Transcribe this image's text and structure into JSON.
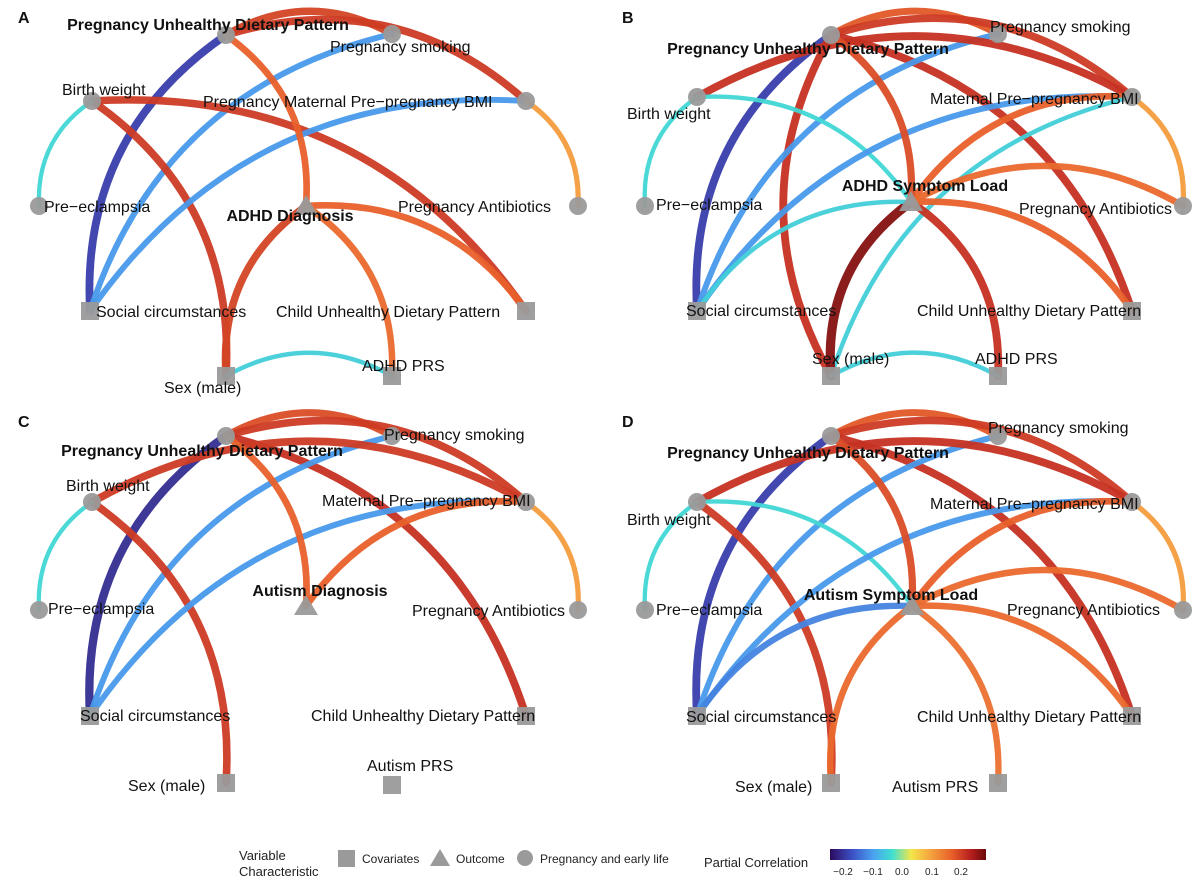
{
  "panels": [
    {
      "letter": "A",
      "labels": {
        "pudp": "Pregnancy Unhealthy Dietary Pattern",
        "smoking": "Pregnancy smoking",
        "birth": "Birth weight",
        "bmi": "Pregnancy Maternal Pre−pregnancy BMI",
        "outcome": "ADHD Diagnosis",
        "preeclampsia": "Pre−eclampsia",
        "antibiotics": "Pregnancy Antibiotics",
        "social": "Social circumstances",
        "cudp": "Child Unhealthy Dietary Pattern",
        "sex": "Sex (male)",
        "prs": "ADHD PRS"
      },
      "edges": [
        [
          "pudp",
          "smoking",
          0.2
        ],
        [
          "pudp",
          "bmi",
          0.21
        ],
        [
          "pudp",
          "social",
          -0.22
        ],
        [
          "smoking",
          "social",
          -0.13
        ],
        [
          "birth",
          "cudp",
          0.21
        ],
        [
          "birth",
          "sex",
          0.21
        ],
        [
          "bmi",
          "social",
          -0.13
        ],
        [
          "bmi",
          "antibiotics",
          0.1
        ],
        [
          "preeclampsia",
          "birth",
          -0.06
        ],
        [
          "outcome",
          "pudp",
          0.17
        ],
        [
          "outcome",
          "sex",
          0.2
        ],
        [
          "outcome",
          "cudp",
          0.17
        ],
        [
          "outcome",
          "prs",
          0.16
        ],
        [
          "sex",
          "prs",
          -0.07
        ]
      ]
    },
    {
      "letter": "B",
      "labels": {
        "pudp": "Pregnancy Unhealthy Dietary Pattern",
        "smoking": "Pregnancy smoking",
        "birth": "Birth weight",
        "bmi": "Maternal Pre−pregnancy BMI",
        "outcome": "ADHD Symptom Load",
        "preeclampsia": "Pre−eclampsia",
        "antibiotics": "Pregnancy Antibiotics",
        "social": "Social circumstances",
        "cudp": "Child Unhealthy Dietary Pattern",
        "sex": "Sex (male)",
        "prs": "ADHD PRS"
      },
      "edges": [
        [
          "pudp",
          "smoking",
          0.18
        ],
        [
          "pudp",
          "bmi",
          0.21
        ],
        [
          "pudp",
          "social",
          -0.22
        ],
        [
          "pudp",
          "cudp",
          0.22
        ],
        [
          "pudp",
          "sex",
          0.22
        ],
        [
          "smoking",
          "social",
          -0.13
        ],
        [
          "birth",
          "bmi",
          0.22
        ],
        [
          "birth",
          "outcome",
          -0.06
        ],
        [
          "bmi",
          "social",
          -0.13
        ],
        [
          "bmi",
          "antibiotics",
          0.1
        ],
        [
          "bmi",
          "outcome",
          0.17
        ],
        [
          "bmi",
          "sex",
          -0.07
        ],
        [
          "preeclampsia",
          "birth",
          -0.06
        ],
        [
          "outcome",
          "pudp",
          0.19
        ],
        [
          "outcome",
          "sex",
          0.28
        ],
        [
          "outcome",
          "prs",
          0.22
        ],
        [
          "outcome",
          "cudp",
          0.17
        ],
        [
          "outcome",
          "antibiotics",
          0.16
        ],
        [
          "outcome",
          "social",
          -0.07
        ],
        [
          "sex",
          "prs",
          -0.07
        ]
      ]
    },
    {
      "letter": "C",
      "labels": {
        "pudp": "Pregnancy Unhealthy Dietary Pattern",
        "smoking": "Pregnancy smoking",
        "birth": "Birth weight",
        "bmi": "Maternal Pre−pregnancy BMI",
        "outcome": "Autism Diagnosis",
        "preeclampsia": "Pre−eclampsia",
        "antibiotics": "Pregnancy Antibiotics",
        "social": "Social circumstances",
        "cudp": "Child Unhealthy Dietary Pattern",
        "sex": "Sex (male)",
        "prs": "Autism PRS"
      },
      "edges": [
        [
          "pudp",
          "smoking",
          0.19
        ],
        [
          "pudp",
          "bmi",
          0.21
        ],
        [
          "pudp",
          "social",
          -0.24
        ],
        [
          "pudp",
          "cudp",
          0.22
        ],
        [
          "smoking",
          "social",
          -0.13
        ],
        [
          "birth",
          "bmi",
          0.21
        ],
        [
          "birth",
          "sex",
          0.21
        ],
        [
          "bmi",
          "social",
          -0.13
        ],
        [
          "bmi",
          "antibiotics",
          0.1
        ],
        [
          "bmi",
          "outcome",
          0.17
        ],
        [
          "preeclampsia",
          "birth",
          -0.06
        ],
        [
          "outcome",
          "pudp",
          0.17
        ]
      ]
    },
    {
      "letter": "D",
      "labels": {
        "pudp": "Pregnancy Unhealthy Dietary Pattern",
        "smoking": "Pregnancy smoking",
        "birth": "Birth weight",
        "bmi": "Maternal Pre−pregnancy BMI",
        "outcome": "Autism Symptom Load",
        "preeclampsia": "Pre−eclampsia",
        "antibiotics": "Pregnancy Antibiotics",
        "social": "Social circumstances",
        "cudp": "Child Unhealthy Dietary Pattern",
        "sex": "Sex (male)",
        "prs": "Autism PRS"
      },
      "edges": [
        [
          "pudp",
          "smoking",
          0.18
        ],
        [
          "pudp",
          "bmi",
          0.21
        ],
        [
          "pudp",
          "social",
          -0.22
        ],
        [
          "pudp",
          "cudp",
          0.22
        ],
        [
          "smoking",
          "social",
          -0.13
        ],
        [
          "birth",
          "bmi",
          0.22
        ],
        [
          "birth",
          "outcome",
          -0.06
        ],
        [
          "birth",
          "sex",
          0.21
        ],
        [
          "bmi",
          "social",
          -0.13
        ],
        [
          "bmi",
          "antibiotics",
          0.1
        ],
        [
          "bmi",
          "outcome",
          0.17
        ],
        [
          "preeclampsia",
          "birth",
          -0.06
        ],
        [
          "outcome",
          "pudp",
          0.19
        ],
        [
          "outcome",
          "social",
          -0.15
        ],
        [
          "outcome",
          "sex",
          0.16
        ],
        [
          "outcome",
          "prs",
          0.15
        ],
        [
          "outcome",
          "cudp",
          0.16
        ],
        [
          "outcome",
          "antibiotics",
          0.16
        ]
      ]
    }
  ],
  "node_types": {
    "pudp": "circle",
    "smoking": "circle",
    "birth": "circle",
    "bmi": "circle",
    "preeclampsia": "circle",
    "antibiotics": "circle",
    "social": "square",
    "cudp": "square",
    "sex": "square",
    "prs": "square",
    "outcome": "triangle"
  },
  "legend": {
    "variable_title_1": "Variable",
    "variable_title_2": "Characteristic",
    "covariates": "Covariates",
    "outcome": "Outcome",
    "pregnancy": "Pregnancy and early life",
    "corr_title": "Partial Correlation",
    "ticks": [
      "−0.2",
      "−0.1",
      "0.0",
      "0.1",
      "0.2"
    ]
  },
  "colors": {
    "node_gray": "#9a9a9a",
    "scale": [
      "#2d0a5e",
      "#3b4fc4",
      "#4aa3f0",
      "#3fe0d0",
      "#f4e64a",
      "#f5a540",
      "#e8602a",
      "#b81f1f",
      "#6b0a0a"
    ]
  }
}
